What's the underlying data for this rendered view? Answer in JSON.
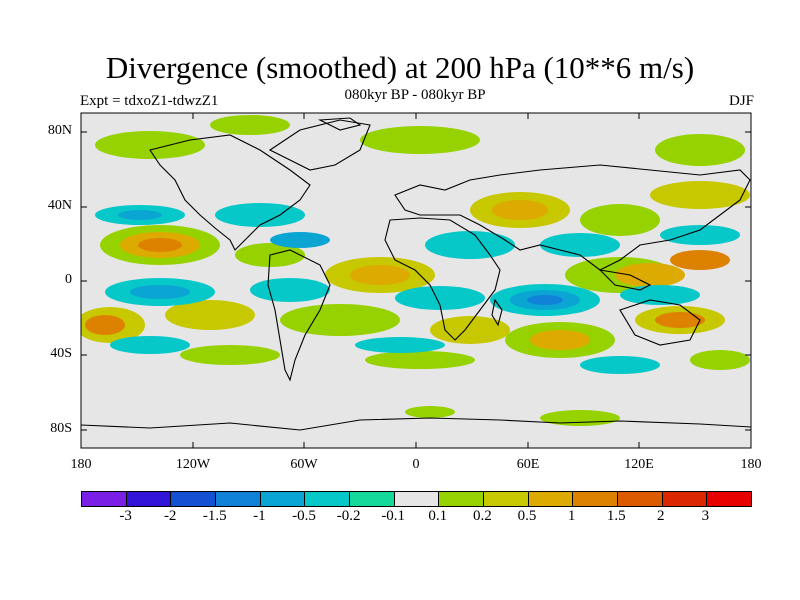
{
  "title": "Divergence (smoothed) at 200 hPa (10**6 m/s)",
  "experiment": "Expt = tdxoZ1-tdwzZ1",
  "period": "080kyr BP - 080kyr BP",
  "season": "DJF",
  "y_axis_labels": [
    "80N",
    "40N",
    "0",
    "40S",
    "80S"
  ],
  "x_axis_labels": [
    "180",
    "120W",
    "60W",
    "0",
    "60E",
    "120E",
    "180"
  ],
  "colorbar": {
    "labels": [
      "-3",
      "-2",
      "-1.5",
      "-1",
      "-0.5",
      "-0.2",
      "-0.1",
      "0.1",
      "0.2",
      "0.5",
      "1",
      "1.5",
      "2",
      "3"
    ],
    "colors": [
      "#7a1fe6",
      "#3214d8",
      "#1450d2",
      "#0f82d8",
      "#0aa5d2",
      "#06c8c8",
      "#14d99b",
      "#e6e6e6",
      "#96d200",
      "#c8c800",
      "#dcaa00",
      "#dc8200",
      "#dc5a00",
      "#dc2800",
      "#e60000"
    ]
  }
}
